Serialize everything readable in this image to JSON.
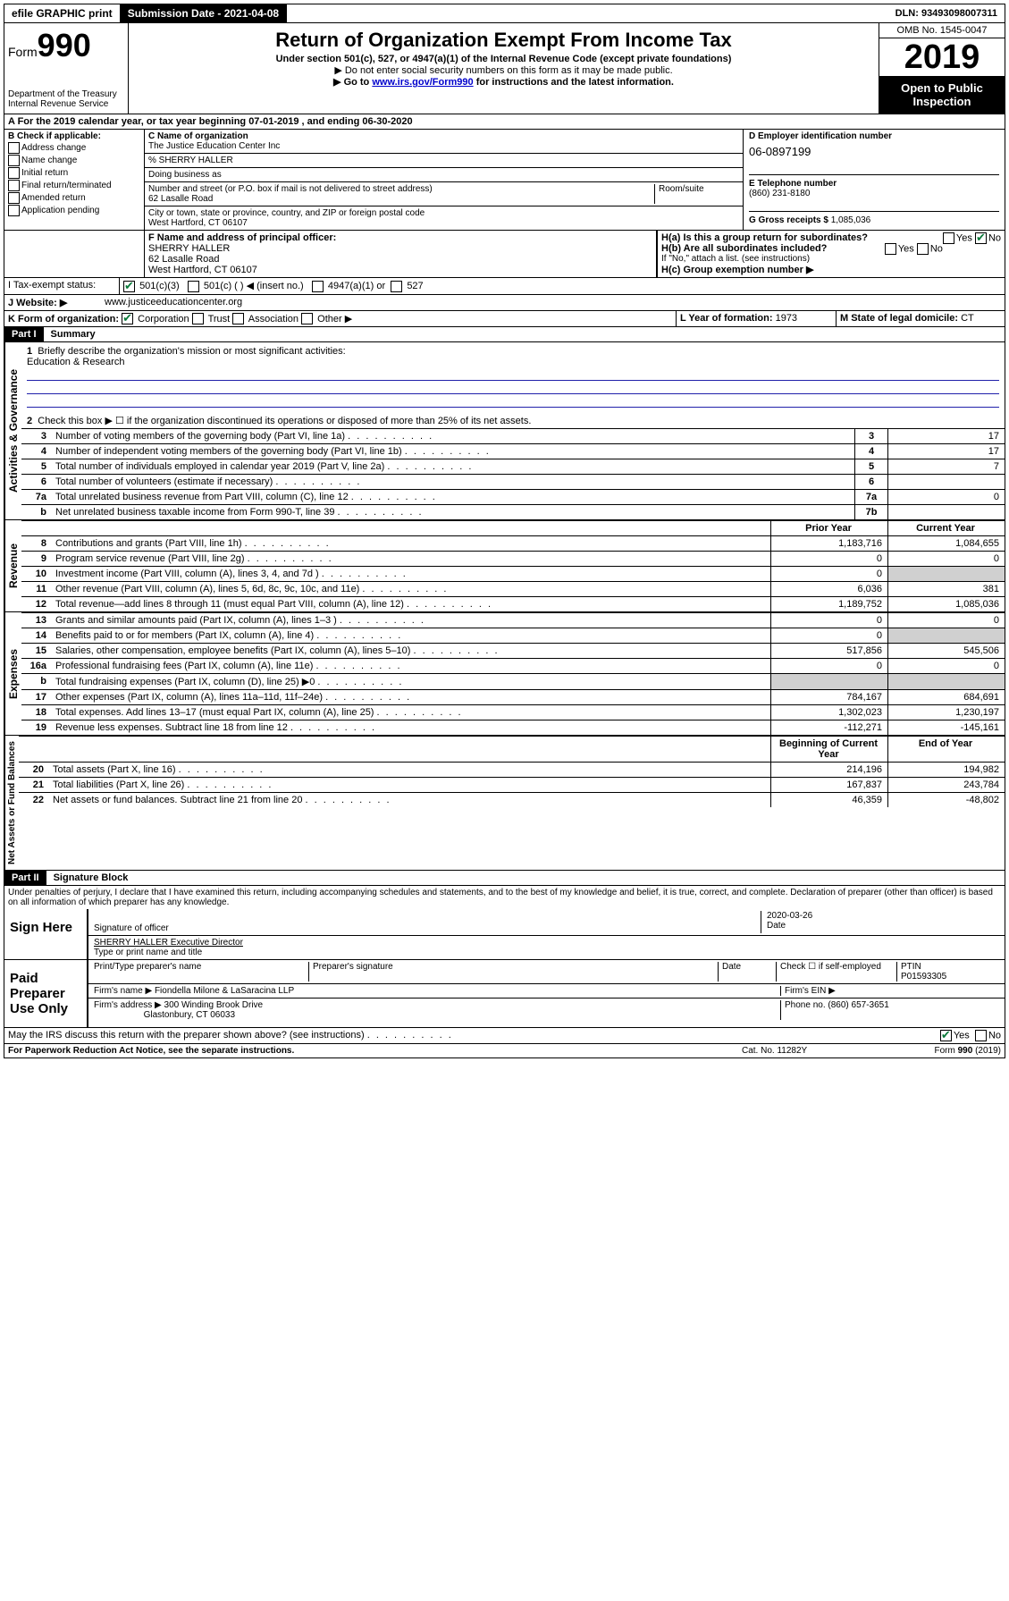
{
  "topbar": {
    "efile": "efile GRAPHIC print",
    "submission_label": "Submission Date - 2021-04-08",
    "dln": "DLN: 93493098007311"
  },
  "header": {
    "form_prefix": "Form",
    "form_number": "990",
    "dept": "Department of the Treasury",
    "irs": "Internal Revenue Service",
    "title": "Return of Organization Exempt From Income Tax",
    "subtitle": "Under section 501(c), 527, or 4947(a)(1) of the Internal Revenue Code (except private foundations)",
    "note1": "▶ Do not enter social security numbers on this form as it may be made public.",
    "note2_pre": "▶ Go to ",
    "note2_link": "www.irs.gov/Form990",
    "note2_post": " for instructions and the latest information.",
    "omb": "OMB No. 1545-0047",
    "year": "2019",
    "open": "Open to Public Inspection"
  },
  "period": {
    "line": "A For the 2019 calendar year, or tax year beginning 07-01-2019   , and ending 06-30-2020"
  },
  "checkboxes": {
    "header": "B Check if applicable:",
    "items": [
      "Address change",
      "Name change",
      "Initial return",
      "Final return/terminated",
      "Amended return",
      "Application pending"
    ]
  },
  "org": {
    "c_label": "C Name of organization",
    "name": "The Justice Education Center Inc",
    "care_of": "% SHERRY HALLER",
    "dba_label": "Doing business as",
    "addr_label": "Number and street (or P.O. box if mail is not delivered to street address)",
    "room_label": "Room/suite",
    "addr": "62 Lasalle Road",
    "city_label": "City or town, state or province, country, and ZIP or foreign postal code",
    "city": "West Hartford, CT  06107"
  },
  "d": {
    "label": "D Employer identification number",
    "value": "06-0897199"
  },
  "e": {
    "label": "E Telephone number",
    "value": "(860) 231-8180"
  },
  "g": {
    "label": "G Gross receipts $",
    "value": "1,085,036"
  },
  "f": {
    "label": "F Name and address of principal officer:",
    "name": "SHERRY HALLER",
    "addr1": "62 Lasalle Road",
    "addr2": "West Hartford, CT  06107"
  },
  "h": {
    "a": "H(a)  Is this a group return for subordinates?",
    "b": "H(b)  Are all subordinates included?",
    "note": "If \"No,\" attach a list. (see instructions)",
    "c": "H(c)  Group exemption number ▶"
  },
  "i": {
    "label": "I   Tax-exempt status:",
    "opt1": "501(c)(3)",
    "opt2": "501(c) (   ) ◀ (insert no.)",
    "opt3": "4947(a)(1) or",
    "opt4": "527"
  },
  "j": {
    "label": "J   Website: ▶",
    "value": "www.justiceeducationcenter.org"
  },
  "k": {
    "label": "K Form of organization:",
    "corp": "Corporation",
    "trust": "Trust",
    "assoc": "Association",
    "other": "Other ▶"
  },
  "l": {
    "label": "L Year of formation:",
    "value": "1973"
  },
  "m": {
    "label": "M State of legal domicile:",
    "value": "CT"
  },
  "part1": {
    "header": "Part I",
    "title": "Summary",
    "line1_label": "Briefly describe the organization's mission or most significant activities:",
    "line1_value": "Education & Research",
    "line2": "Check this box ▶ ☐ if the organization discontinued its operations or disposed of more than 25% of its net assets.",
    "gov_label": "Activities & Governance",
    "rev_label": "Revenue",
    "exp_label": "Expenses",
    "net_label": "Net Assets or Fund Balances",
    "prior": "Prior Year",
    "current": "Current Year",
    "begin": "Beginning of Current Year",
    "end": "End of Year",
    "lines_gov": [
      {
        "n": "3",
        "t": "Number of voting members of the governing body (Part VI, line 1a)",
        "box": "3",
        "v": "17"
      },
      {
        "n": "4",
        "t": "Number of independent voting members of the governing body (Part VI, line 1b)",
        "box": "4",
        "v": "17"
      },
      {
        "n": "5",
        "t": "Total number of individuals employed in calendar year 2019 (Part V, line 2a)",
        "box": "5",
        "v": "7"
      },
      {
        "n": "6",
        "t": "Total number of volunteers (estimate if necessary)",
        "box": "6",
        "v": ""
      },
      {
        "n": "7a",
        "t": "Total unrelated business revenue from Part VIII, column (C), line 12",
        "box": "7a",
        "v": "0"
      },
      {
        "n": "b",
        "t": "Net unrelated business taxable income from Form 990-T, line 39",
        "box": "7b",
        "v": ""
      }
    ],
    "lines_rev": [
      {
        "n": "8",
        "t": "Contributions and grants (Part VIII, line 1h)",
        "p": "1,183,716",
        "c": "1,084,655"
      },
      {
        "n": "9",
        "t": "Program service revenue (Part VIII, line 2g)",
        "p": "0",
        "c": "0"
      },
      {
        "n": "10",
        "t": "Investment income (Part VIII, column (A), lines 3, 4, and 7d )",
        "p": "0",
        "c": ""
      },
      {
        "n": "11",
        "t": "Other revenue (Part VIII, column (A), lines 5, 6d, 8c, 9c, 10c, and 11e)",
        "p": "6,036",
        "c": "381"
      },
      {
        "n": "12",
        "t": "Total revenue—add lines 8 through 11 (must equal Part VIII, column (A), line 12)",
        "p": "1,189,752",
        "c": "1,085,036"
      }
    ],
    "lines_exp": [
      {
        "n": "13",
        "t": "Grants and similar amounts paid (Part IX, column (A), lines 1–3 )",
        "p": "0",
        "c": "0"
      },
      {
        "n": "14",
        "t": "Benefits paid to or for members (Part IX, column (A), line 4)",
        "p": "0",
        "c": ""
      },
      {
        "n": "15",
        "t": "Salaries, other compensation, employee benefits (Part IX, column (A), lines 5–10)",
        "p": "517,856",
        "c": "545,506"
      },
      {
        "n": "16a",
        "t": "Professional fundraising fees (Part IX, column (A), line 11e)",
        "p": "0",
        "c": "0"
      },
      {
        "n": "b",
        "t": "Total fundraising expenses (Part IX, column (D), line 25) ▶0",
        "p": "",
        "c": ""
      },
      {
        "n": "17",
        "t": "Other expenses (Part IX, column (A), lines 11a–11d, 11f–24e)",
        "p": "784,167",
        "c": "684,691"
      },
      {
        "n": "18",
        "t": "Total expenses. Add lines 13–17 (must equal Part IX, column (A), line 25)",
        "p": "1,302,023",
        "c": "1,230,197"
      },
      {
        "n": "19",
        "t": "Revenue less expenses. Subtract line 18 from line 12",
        "p": "-112,271",
        "c": "-145,161"
      }
    ],
    "lines_net": [
      {
        "n": "20",
        "t": "Total assets (Part X, line 16)",
        "p": "214,196",
        "c": "194,982"
      },
      {
        "n": "21",
        "t": "Total liabilities (Part X, line 26)",
        "p": "167,837",
        "c": "243,784"
      },
      {
        "n": "22",
        "t": "Net assets or fund balances. Subtract line 21 from line 20",
        "p": "46,359",
        "c": "-48,802"
      }
    ]
  },
  "part2": {
    "header": "Part II",
    "title": "Signature Block",
    "perjury": "Under penalties of perjury, I declare that I have examined this return, including accompanying schedules and statements, and to the best of my knowledge and belief, it is true, correct, and complete. Declaration of preparer (other than officer) is based on all information of which preparer has any knowledge.",
    "sign_here": "Sign Here",
    "sig_officer": "Signature of officer",
    "date_label": "Date",
    "date_value": "2020-03-26",
    "officer_name": "SHERRY HALLER  Executive Director",
    "type_name": "Type or print name and title",
    "paid": "Paid Preparer Use Only",
    "prep_name_label": "Print/Type preparer's name",
    "prep_sig_label": "Preparer's signature",
    "check_self": "Check ☐ if self-employed",
    "ptin_label": "PTIN",
    "ptin": "P01593305",
    "firm_name_label": "Firm's name   ▶",
    "firm_name": "Fiondella Milone & LaSaracina LLP",
    "firm_ein_label": "Firm's EIN ▶",
    "firm_addr_label": "Firm's address ▶",
    "firm_addr1": "300 Winding Brook Drive",
    "firm_addr2": "Glastonbury, CT  06033",
    "phone_label": "Phone no.",
    "phone": "(860) 657-3651",
    "discuss": "May the IRS discuss this return with the preparer shown above? (see instructions)",
    "yes": "Yes",
    "no": "No"
  },
  "footer": {
    "left": "For Paperwork Reduction Act Notice, see the separate instructions.",
    "mid": "Cat. No. 11282Y",
    "right": "Form 990 (2019)"
  }
}
